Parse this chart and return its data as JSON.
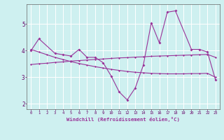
{
  "x": [
    0,
    1,
    2,
    3,
    4,
    5,
    6,
    7,
    8,
    9,
    10,
    11,
    12,
    13,
    14,
    15,
    16,
    17,
    18,
    19,
    20,
    21,
    22,
    23
  ],
  "line1": [
    4.0,
    4.45,
    3.9,
    3.85,
    3.8,
    4.05,
    3.75,
    3.75,
    3.55,
    3.05,
    2.45,
    2.15,
    2.6,
    3.45,
    5.05,
    4.3,
    5.45,
    5.5,
    4.05,
    4.05,
    3.95,
    2.9
  ],
  "line1_x": [
    0,
    1,
    3,
    4,
    5,
    6,
    7,
    8,
    9,
    10,
    11,
    12,
    13,
    14,
    15,
    16,
    17,
    18,
    20,
    21,
    22,
    23
  ],
  "trend1": [
    4.05,
    3.95,
    3.85,
    3.75,
    3.67,
    3.59,
    3.52,
    3.46,
    3.4,
    3.35,
    3.3,
    3.26,
    3.22,
    3.19,
    3.17,
    3.15,
    3.14,
    3.13,
    3.13,
    3.13,
    3.14,
    3.14,
    3.15,
    3.0
  ],
  "trend2": [
    3.48,
    3.51,
    3.53,
    3.56,
    3.58,
    3.61,
    3.63,
    3.65,
    3.67,
    3.69,
    3.71,
    3.73,
    3.74,
    3.76,
    3.77,
    3.79,
    3.8,
    3.81,
    3.82,
    3.83,
    3.84,
    3.85,
    3.86,
    3.75
  ],
  "color": "#993399",
  "bg_color": "#cef0f0",
  "grid_color": "#b0e0e0",
  "xlabel": "Windchill (Refroidissement éolien,°C)",
  "ylim": [
    1.8,
    5.75
  ],
  "xlim": [
    -0.5,
    23.5
  ],
  "yticks": [
    2,
    3,
    4,
    5
  ],
  "xticks": [
    0,
    1,
    2,
    3,
    4,
    5,
    6,
    7,
    8,
    9,
    10,
    11,
    12,
    13,
    14,
    15,
    16,
    17,
    18,
    19,
    20,
    21,
    22,
    23
  ]
}
